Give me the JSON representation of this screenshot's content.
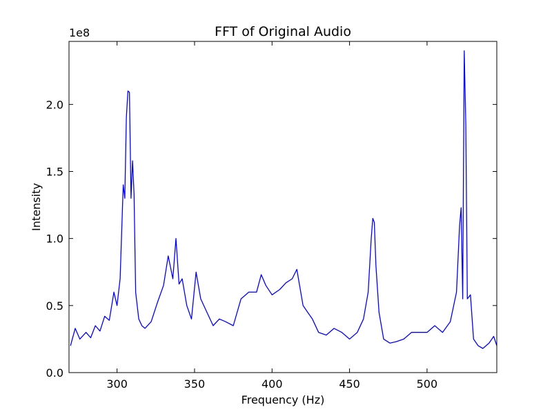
{
  "chart_data": {
    "type": "line",
    "title": "FFT of Original Audio",
    "xlabel": "Frequency (Hz)",
    "ylabel": "Intensity",
    "y_multiplier_label": "1e8",
    "xlim": [
      269,
      545
    ],
    "ylim": [
      0,
      2.47
    ],
    "x_ticks": [
      300,
      350,
      400,
      450,
      500
    ],
    "y_ticks": [
      0.0,
      0.5,
      1.0,
      1.5,
      2.0
    ],
    "x_tick_labels": [
      "300",
      "350",
      "400",
      "450",
      "500"
    ],
    "y_tick_labels": [
      "0.0",
      "0.5",
      "1.0",
      "1.5",
      "2.0"
    ],
    "grid": false,
    "line_color": "#0000ff",
    "series": [
      {
        "x": [
          270,
          273,
          276,
          280,
          283,
          286,
          289,
          292,
          295,
          298,
          300,
          302,
          304,
          305,
          306,
          307,
          308,
          309,
          310,
          311,
          312,
          314,
          316,
          318,
          322,
          326,
          330,
          333,
          336,
          338,
          340,
          342,
          345,
          348,
          351,
          354,
          358,
          362,
          366,
          370,
          375,
          380,
          385,
          390,
          393,
          396,
          400,
          405,
          409,
          413,
          416,
          420,
          423,
          426,
          430,
          435,
          440,
          445,
          450,
          455,
          459,
          462,
          464,
          465,
          466,
          467,
          469,
          472,
          476,
          480,
          485,
          490,
          495,
          500,
          505,
          510,
          515,
          519,
          521,
          522,
          523,
          524,
          525,
          526,
          528,
          530,
          533,
          536,
          540,
          543,
          545
        ],
        "y": [
          0.2,
          0.33,
          0.25,
          0.3,
          0.26,
          0.35,
          0.31,
          0.42,
          0.39,
          0.6,
          0.5,
          0.7,
          1.4,
          1.3,
          1.9,
          2.1,
          2.09,
          1.3,
          1.58,
          1.33,
          0.6,
          0.4,
          0.35,
          0.33,
          0.38,
          0.52,
          0.65,
          0.87,
          0.7,
          1.0,
          0.66,
          0.7,
          0.5,
          0.4,
          0.75,
          0.55,
          0.45,
          0.35,
          0.4,
          0.38,
          0.35,
          0.55,
          0.6,
          0.6,
          0.73,
          0.65,
          0.58,
          0.62,
          0.67,
          0.7,
          0.77,
          0.5,
          0.45,
          0.4,
          0.3,
          0.28,
          0.33,
          0.3,
          0.25,
          0.3,
          0.4,
          0.6,
          1.0,
          1.15,
          1.12,
          0.8,
          0.45,
          0.25,
          0.22,
          0.23,
          0.25,
          0.3,
          0.3,
          0.3,
          0.35,
          0.3,
          0.38,
          0.6,
          1.1,
          1.23,
          0.55,
          2.4,
          1.85,
          0.55,
          0.58,
          0.25,
          0.2,
          0.18,
          0.22,
          0.27,
          0.2
        ]
      }
    ]
  }
}
